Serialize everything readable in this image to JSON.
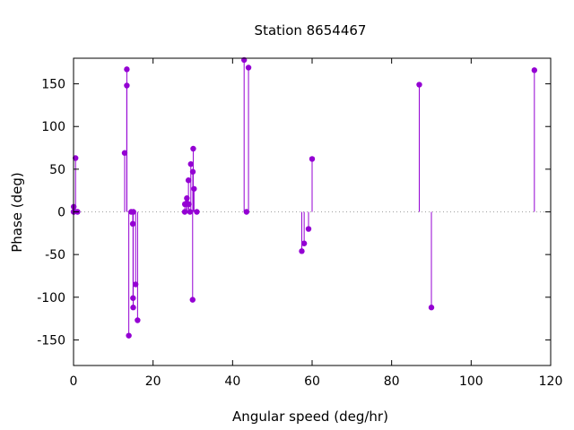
{
  "chart_data": {
    "type": "scatter",
    "style": "impulses-with-points",
    "title": "Station 8654467",
    "xlabel": "Angular speed (deg/hr)",
    "ylabel": "Phase (deg)",
    "xlim": [
      0,
      120
    ],
    "ylim": [
      -180,
      180
    ],
    "xticks": [
      0,
      20,
      40,
      60,
      80,
      100,
      120
    ],
    "yticks": [
      -150,
      -100,
      -50,
      0,
      50,
      100,
      150
    ],
    "grid": false,
    "zero_line": "dotted",
    "color": "#9400d3",
    "points": [
      {
        "x": 0.0,
        "y": 0
      },
      {
        "x": 0.04,
        "y": 6
      },
      {
        "x": 0.08,
        "y": 0
      },
      {
        "x": 0.5,
        "y": 63
      },
      {
        "x": 1.0,
        "y": 0
      },
      {
        "x": 12.85,
        "y": 69
      },
      {
        "x": 13.4,
        "y": 148
      },
      {
        "x": 13.4,
        "y": 167
      },
      {
        "x": 13.9,
        "y": -145
      },
      {
        "x": 14.5,
        "y": 0
      },
      {
        "x": 14.9,
        "y": -14
      },
      {
        "x": 14.96,
        "y": -101
      },
      {
        "x": 15.0,
        "y": -112
      },
      {
        "x": 15.04,
        "y": 0
      },
      {
        "x": 15.6,
        "y": -85
      },
      {
        "x": 16.1,
        "y": -127
      },
      {
        "x": 27.97,
        "y": 0
      },
      {
        "x": 28.0,
        "y": 9
      },
      {
        "x": 28.4,
        "y": 10
      },
      {
        "x": 28.5,
        "y": 16
      },
      {
        "x": 28.9,
        "y": 37
      },
      {
        "x": 29.0,
        "y": 9
      },
      {
        "x": 29.3,
        "y": 0
      },
      {
        "x": 29.5,
        "y": 56
      },
      {
        "x": 29.95,
        "y": -103
      },
      {
        "x": 30.0,
        "y": 47
      },
      {
        "x": 30.1,
        "y": 74
      },
      {
        "x": 30.3,
        "y": 27
      },
      {
        "x": 31.0,
        "y": 0
      },
      {
        "x": 42.9,
        "y": 178
      },
      {
        "x": 43.5,
        "y": 0
      },
      {
        "x": 44.0,
        "y": 169
      },
      {
        "x": 57.4,
        "y": -46
      },
      {
        "x": 58.0,
        "y": -37
      },
      {
        "x": 59.1,
        "y": -20
      },
      {
        "x": 60.0,
        "y": 62
      },
      {
        "x": 86.95,
        "y": 149
      },
      {
        "x": 90.0,
        "y": -112
      },
      {
        "x": 115.9,
        "y": 166
      }
    ]
  }
}
